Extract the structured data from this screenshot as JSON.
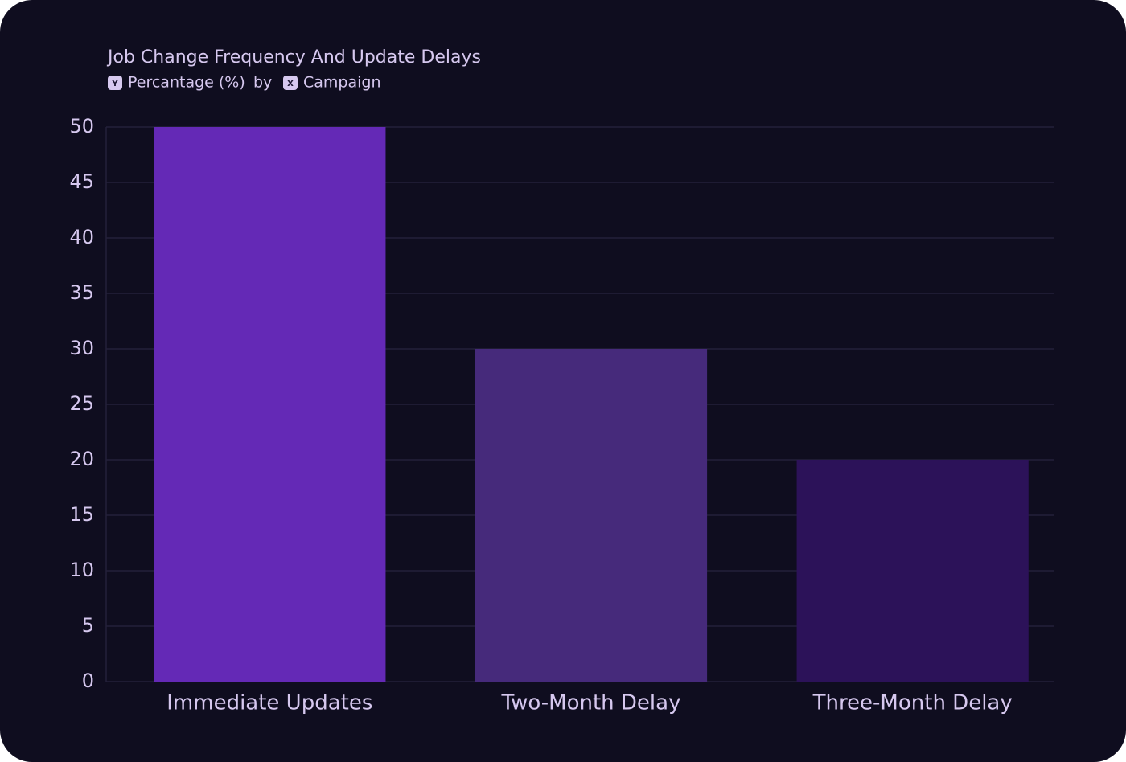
{
  "chart_data": {
    "type": "bar",
    "title": "Job Change Frequency And Update Delays",
    "y_badge": "Y",
    "y_label": "Percantage (%)",
    "connector": "by",
    "x_badge": "X",
    "x_label": "Campaign",
    "categories": [
      "Immediate Updates",
      "Two-Month Delay",
      "Three-Month Delay"
    ],
    "values": [
      50,
      30,
      20
    ],
    "colors": [
      "#6429b6",
      "#462a7b",
      "#2c1259"
    ],
    "ylim": [
      0,
      50
    ],
    "yticks": [
      0,
      5,
      10,
      15,
      20,
      25,
      30,
      35,
      40,
      45,
      50
    ],
    "grid": true
  }
}
